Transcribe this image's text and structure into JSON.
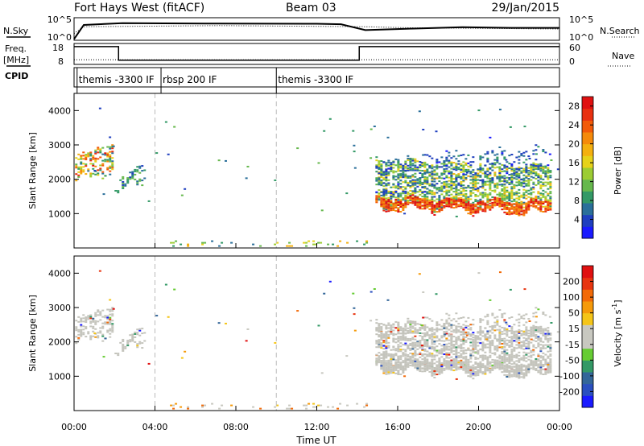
{
  "header": {
    "station": "Fort Hays West (fitACF)",
    "beam": "Beam 03",
    "date": "29/Jan/2015"
  },
  "strip_labels": {
    "nsky": "N.Sky",
    "nsearch": "N.Search",
    "freq": "Freq.",
    "freq_unit": "[MHz]",
    "nave": "Nave",
    "cpid": "CPID"
  },
  "chart_data": [
    {
      "type": "line",
      "name": "noise",
      "ylabels_left": [
        "10^5",
        "10^0"
      ],
      "ylabels_right": [
        "10^5",
        "10^0"
      ],
      "nsky_level": [
        [
          0.0,
          0.05
        ],
        [
          0.02,
          0.68
        ],
        [
          0.1,
          0.76
        ],
        [
          0.3,
          0.74
        ],
        [
          0.5,
          0.73
        ],
        [
          0.55,
          0.71
        ],
        [
          0.6,
          0.45
        ],
        [
          0.7,
          0.52
        ],
        [
          0.8,
          0.58
        ],
        [
          0.9,
          0.55
        ],
        [
          1.0,
          0.55
        ]
      ],
      "nsearch_level": [
        [
          0.0,
          0.3
        ],
        [
          0.02,
          0.6
        ],
        [
          0.3,
          0.65
        ],
        [
          0.6,
          0.6
        ],
        [
          0.7,
          0.55
        ],
        [
          1.0,
          0.5
        ]
      ]
    },
    {
      "type": "line",
      "name": "freq-nave",
      "ylabels_left": [
        "18",
        "8"
      ],
      "ylabels_right": [
        "60",
        "0"
      ],
      "freq_segments": [
        {
          "x0": 0.0,
          "x1": 2.2,
          "v": 0.85
        },
        {
          "x0": 2.2,
          "x1": 14.1,
          "v": 0.2
        },
        {
          "x0": 14.1,
          "x1": 24,
          "v": 0.85
        }
      ],
      "nave_level": 0.22
    },
    {
      "type": "table",
      "name": "cpid",
      "segments": [
        {
          "x": 0.15,
          "label": "themis -3300 IF"
        },
        {
          "x": 4.3,
          "label": "rbsp 200 IF"
        },
        {
          "x": 10.0,
          "label": "themis -3300 IF"
        }
      ]
    },
    {
      "type": "heatmap",
      "name": "power",
      "ylabel": "Slant Range [km]",
      "xlim": [
        0,
        24
      ],
      "ylim": [
        0,
        4500
      ],
      "yticks": [
        1000,
        2000,
        3000,
        4000
      ],
      "colorbar": {
        "label": "Power [dB]",
        "ticks": [
          4,
          8,
          12,
          16,
          20,
          24,
          28
        ],
        "range": [
          0,
          30
        ],
        "colors": [
          "#1a1aff",
          "#1f3fbf",
          "#2a6f9a",
          "#339966",
          "#66b84d",
          "#9ccc33",
          "#e6d21a",
          "#f4b00f",
          "#f58a0a",
          "#f25a08",
          "#e83010",
          "#e01010"
        ]
      },
      "dashed_lines_x": [
        4.0,
        10.0
      ],
      "blobs": [
        {
          "x0": 0.05,
          "x1": 1.9,
          "r0a": 1900,
          "r0b": 2650,
          "r1a": 2300,
          "r1b": 3200,
          "p": 0.45,
          "vmin": 6,
          "vmax": 28
        },
        {
          "x0": 2.0,
          "x1": 3.5,
          "r0a": 1550,
          "r0b": 1900,
          "r1a": 2050,
          "r1b": 2650,
          "p": 0.35,
          "vmin": 4,
          "vmax": 12
        },
        {
          "x0": 14.9,
          "x1": 23.6,
          "r0a": 1250,
          "r0b": 2600,
          "r1a": 1200,
          "r1b": 2400,
          "p": 0.55,
          "vmin": 6,
          "vmax": 18
        },
        {
          "x0": 14.9,
          "x1": 23.6,
          "r0a": 1450,
          "r0b": 2650,
          "r1a": 2000,
          "r1b": 3000,
          "p": 0.18,
          "vmin": 2,
          "vmax": 8
        },
        {
          "x0": 14.9,
          "x1": 23.6,
          "r0a": 1200,
          "r0b": 1500,
          "r1a": 1050,
          "r1b": 1350,
          "p": 0.8,
          "vmin": 20,
          "vmax": 30
        }
      ],
      "ground_band": {
        "x0": 4.5,
        "x1": 14.5,
        "rmax": 250,
        "p": 0.12
      }
    },
    {
      "type": "heatmap",
      "name": "velocity",
      "ylabel": "Slant Range [km]",
      "xlabel": "Time UT",
      "xlim": [
        0,
        24
      ],
      "ylim": [
        0,
        4500
      ],
      "yticks": [
        1000,
        2000,
        3000,
        4000
      ],
      "xticks": [
        "00:00",
        "04:00",
        "08:00",
        "12:00",
        "16:00",
        "20:00",
        "00:00"
      ],
      "colorbar": {
        "label": "Velocity [m s",
        "label_sup": "-1",
        "ticks": [
          "200",
          "100",
          "50",
          "15",
          "-15",
          "-50",
          "-100",
          "-200"
        ],
        "colors": [
          "#1a1aff",
          "#2a4fc0",
          "#336699",
          "#339966",
          "#66cc33",
          "#c8c8c0",
          "#c8c8c0",
          "#f5c518",
          "#f59a0a",
          "#f26a08",
          "#e83510",
          "#e01010"
        ]
      },
      "dashed_lines_x": [
        4.0,
        10.0
      ],
      "gray_color": "#c4c4bc"
    }
  ]
}
